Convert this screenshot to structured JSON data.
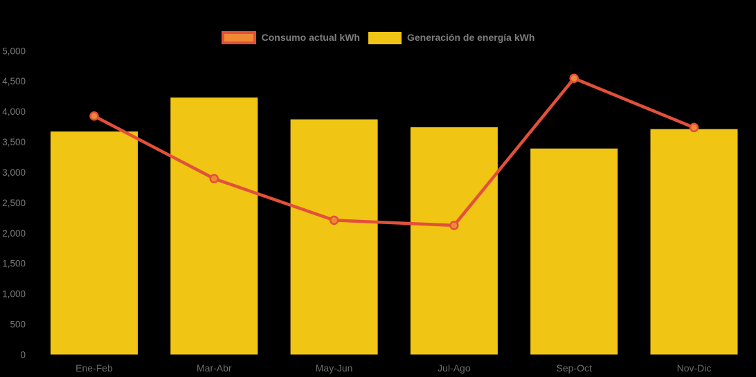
{
  "legend": {
    "position": "top"
  },
  "chart_data": {
    "type": "bar",
    "title": "",
    "categories": [
      "Ene-Feb",
      "Mar-Abr",
      "May-Jun",
      "Jul-Ago",
      "Sep-Oct",
      "Nov-Dic"
    ],
    "series": [
      {
        "name": "Consumo actual kWh",
        "type": "line",
        "values": [
          3925,
          2895,
          2210,
          2125,
          4545,
          3735
        ],
        "color": "#e2503c",
        "marker_color": "#ee8a33"
      },
      {
        "name": "Generación de energía kWh",
        "type": "bar",
        "values": [
          3670,
          4230,
          3870,
          3740,
          3390,
          3710
        ],
        "color": "#f0c513"
      }
    ],
    "xlabel": "",
    "ylabel": "",
    "ylim": [
      0,
      5000
    ],
    "y_ticks": [
      {
        "value": 0,
        "label": "0"
      },
      {
        "value": 500,
        "label": "500"
      },
      {
        "value": 1000,
        "label": "1,000"
      },
      {
        "value": 1500,
        "label": "1,500"
      },
      {
        "value": 2000,
        "label": "2,000"
      },
      {
        "value": 2500,
        "label": "2,500"
      },
      {
        "value": 3000,
        "label": "3,000"
      },
      {
        "value": 3500,
        "label": "3,500"
      },
      {
        "value": 4000,
        "label": "4,000"
      },
      {
        "value": 4500,
        "label": "4,500"
      },
      {
        "value": 5000,
        "label": "5,000"
      }
    ],
    "legend_position": "top-center",
    "grid": false,
    "background": "#000000"
  }
}
